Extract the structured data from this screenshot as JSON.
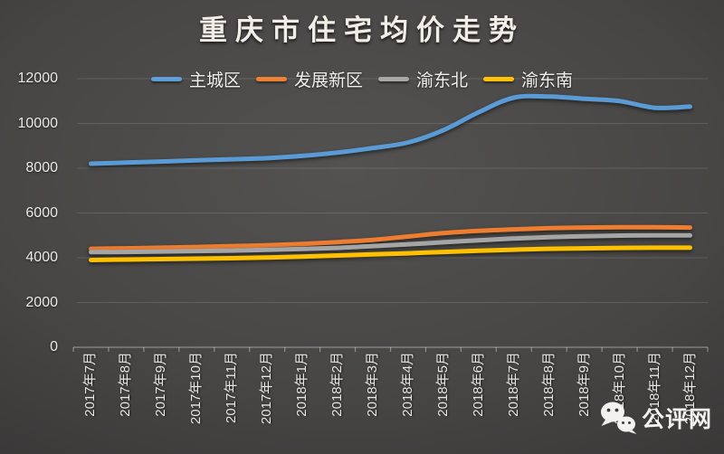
{
  "watermark": {
    "label": "公评网"
  },
  "chart_data": {
    "type": "line",
    "title": "重庆市住宅均价走势",
    "xlabel": "",
    "ylabel": "",
    "ylim": [
      0,
      12000
    ],
    "yticks": [
      0,
      2000,
      4000,
      6000,
      8000,
      10000,
      12000
    ],
    "grid": "horizontal",
    "legend_position": "top",
    "line_style": "smooth",
    "background": "dark-gray-vignette",
    "categories": [
      "2017年7月",
      "2017年8月",
      "2017年9月",
      "2017年10月",
      "2017年11月",
      "2017年12月",
      "2018年1月",
      "2018年2月",
      "2018年3月",
      "2018年4月",
      "2018年5月",
      "2018年6月",
      "2018年7月",
      "2018年8月",
      "2018年9月",
      "2018年10月",
      "2018年11月",
      "2018年12月"
    ],
    "series": [
      {
        "name": "主城区",
        "color": "#5B9BD5",
        "values": [
          8200,
          8250,
          8300,
          8350,
          8400,
          8450,
          8550,
          8700,
          8900,
          9150,
          9700,
          10500,
          11150,
          11200,
          11100,
          11000,
          10700,
          10750
        ]
      },
      {
        "name": "发展新区",
        "color": "#ED7D31",
        "values": [
          4400,
          4420,
          4450,
          4480,
          4520,
          4560,
          4620,
          4700,
          4800,
          4950,
          5100,
          5200,
          5270,
          5320,
          5350,
          5360,
          5360,
          5350
        ]
      },
      {
        "name": "渝东北",
        "color": "#A5A5A5",
        "values": [
          4250,
          4260,
          4280,
          4300,
          4320,
          4350,
          4390,
          4440,
          4520,
          4600,
          4690,
          4780,
          4860,
          4920,
          4960,
          4990,
          5000,
          5000
        ]
      },
      {
        "name": "渝东南",
        "color": "#FFC000",
        "values": [
          3900,
          3920,
          3940,
          3960,
          3980,
          4010,
          4050,
          4100,
          4150,
          4200,
          4260,
          4310,
          4360,
          4400,
          4420,
          4440,
          4450,
          4450
        ]
      }
    ],
    "colors": {
      "text": "#eceae8",
      "gridline": "rgba(255,255,255,0.13)",
      "axis": "rgba(255,255,255,0.38)"
    }
  }
}
